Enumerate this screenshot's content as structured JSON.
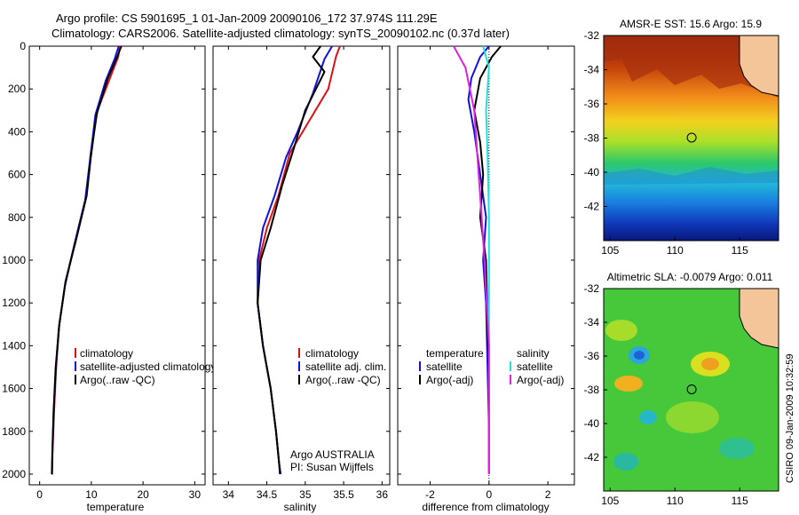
{
  "header": {
    "line1": "Argo profile: CS 5901695_1 01-Jan-2009 20090106_172 37.974S 111.29E",
    "line2": "Climatology: CARS2006. Satellite-adjusted climatology: synTS_20090102.nc (0.37d later)"
  },
  "side_credit": "CSIRO 09-Jan-2009 10:32:59",
  "colors": {
    "climatology": "#dd1111",
    "satellite": "#1111dd",
    "argo": "#000000",
    "cyan": "#22e0e0",
    "magenta": "#e020e0"
  },
  "chart_data": [
    {
      "type": "line",
      "xlabel": "temperature",
      "xlim": [
        -2,
        32
      ],
      "xticks": [
        0,
        10,
        20,
        30
      ],
      "ylim": [
        2050,
        0
      ],
      "yticks": [
        0,
        200,
        400,
        600,
        800,
        1000,
        1200,
        1400,
        1600,
        1800,
        2000
      ],
      "legend": {
        "placement": "center-right",
        "entries": [
          "climatology",
          "satellite-adjusted climatology",
          "Argo(..raw -QC)"
        ]
      },
      "series": [
        {
          "name": "climatology",
          "color": "#dd1111",
          "x": [
            15.5,
            15.2,
            13.6,
            11.2,
            9.9,
            9.0,
            7.0,
            5.0,
            3.8,
            3.2,
            2.8,
            2.5,
            2.4,
            2.35
          ],
          "y": [
            0,
            50,
            150,
            300,
            500,
            700,
            900,
            1100,
            1300,
            1500,
            1700,
            1900,
            2000,
            2000
          ]
        },
        {
          "name": "satellite-adjusted climatology",
          "color": "#1111dd",
          "x": [
            15.3,
            14.5,
            12.8,
            10.8,
            9.8,
            8.8,
            6.8,
            4.9,
            3.7,
            3.1,
            2.7,
            2.45,
            2.35
          ],
          "y": [
            0,
            60,
            160,
            320,
            520,
            720,
            920,
            1120,
            1320,
            1520,
            1720,
            1920,
            2000
          ]
        },
        {
          "name": "Argo(..raw -QC)",
          "color": "#000000",
          "x": [
            15.8,
            15.0,
            13.2,
            11.0,
            9.9,
            9.1,
            7.1,
            5.0,
            3.8,
            3.1,
            2.7,
            2.45,
            2.4
          ],
          "y": [
            0,
            50,
            150,
            320,
            520,
            700,
            900,
            1100,
            1300,
            1500,
            1700,
            1900,
            2000
          ]
        }
      ]
    },
    {
      "type": "line",
      "xlabel": "salinity",
      "xlim": [
        33.8,
        36.1
      ],
      "xticks": [
        34,
        34.5,
        35,
        35.5,
        36
      ],
      "ylim": [
        2050,
        0
      ],
      "yticks": [
        0,
        200,
        400,
        600,
        800,
        1000,
        1200,
        1400,
        1600,
        1800,
        2000
      ],
      "legend": {
        "placement": "center-right",
        "entries": [
          "climatology",
          "satellite adj. clim.",
          "Argo(..raw -QC)"
        ]
      },
      "annotation": [
        "Argo AUSTRALIA",
        "PI: Susan Wijffels"
      ],
      "series": [
        {
          "name": "climatology",
          "color": "#dd1111",
          "x": [
            35.45,
            35.4,
            35.3,
            35.0,
            34.8,
            34.65,
            34.5,
            34.4,
            34.38,
            34.45,
            34.55,
            34.62,
            34.66,
            34.68
          ],
          "y": [
            0,
            50,
            200,
            380,
            500,
            700,
            850,
            1000,
            1200,
            1400,
            1600,
            1800,
            1950,
            2000
          ]
        },
        {
          "name": "satellite adj. clim.",
          "color": "#1111dd",
          "x": [
            35.35,
            35.25,
            35.1,
            34.9,
            34.75,
            34.6,
            34.45,
            34.38,
            34.38,
            34.45,
            34.55,
            34.62,
            34.66,
            34.68
          ],
          "y": [
            0,
            60,
            220,
            400,
            520,
            700,
            850,
            1000,
            1200,
            1400,
            1600,
            1800,
            1950,
            2000
          ]
        },
        {
          "name": "Argo(..raw -QC)",
          "color": "#000000",
          "x": [
            35.2,
            35.1,
            35.25,
            35.0,
            34.85,
            34.7,
            34.55,
            34.42,
            34.38,
            34.45,
            34.55,
            34.62,
            34.66,
            34.67
          ],
          "y": [
            0,
            50,
            120,
            300,
            480,
            650,
            850,
            1000,
            1200,
            1400,
            1600,
            1800,
            1950,
            2000
          ]
        }
      ]
    },
    {
      "type": "line",
      "xlabel": "difference from climatology",
      "xlim": [
        -3.1,
        2.9
      ],
      "xticks": [
        -2,
        0,
        2
      ],
      "ylim": [
        2050,
        0
      ],
      "yticks": [
        0,
        200,
        400,
        600,
        800,
        1000,
        1200,
        1400,
        1600,
        1800,
        2000
      ],
      "legend": {
        "placement": "center",
        "columns": [
          {
            "title": "temperature",
            "entries": [
              "satellite",
              "Argo(-adj)"
            ]
          },
          {
            "title": "salinity",
            "entries": [
              "satellite",
              "Argo(-adj)"
            ]
          }
        ]
      },
      "series": [
        {
          "name": "temperature satellite",
          "color": "#1111dd",
          "x": [
            0.0,
            -0.3,
            -0.6,
            -0.7,
            -0.5,
            -0.3,
            -0.1,
            -0.2,
            -0.1,
            -0.05,
            0.0,
            0.0
          ],
          "y": [
            0,
            50,
            150,
            250,
            400,
            600,
            800,
            1000,
            1200,
            1500,
            1800,
            2000
          ]
        },
        {
          "name": "temperature Argo(-adj)",
          "color": "#000000",
          "x": [
            0.4,
            0.1,
            -0.3,
            -0.5,
            -0.3,
            -0.2,
            -0.3,
            -0.1,
            -0.05,
            0.0,
            0.0
          ],
          "y": [
            0,
            50,
            150,
            300,
            450,
            600,
            800,
            1000,
            1300,
            1600,
            2000
          ]
        },
        {
          "name": "salinity satellite",
          "color": "#22e0e0",
          "x": [
            -0.2,
            0.0,
            -0.1,
            -0.05,
            0.0,
            0.0,
            0.0,
            0.0
          ],
          "y": [
            0,
            100,
            300,
            500,
            800,
            1200,
            1600,
            2000
          ]
        },
        {
          "name": "salinity Argo(-adj)",
          "color": "#e020e0",
          "x": [
            -1.2,
            -0.8,
            -0.5,
            -0.4,
            -0.3,
            -0.15,
            0.0,
            0.0
          ],
          "y": [
            0,
            100,
            300,
            500,
            700,
            1000,
            1400,
            2000
          ]
        }
      ]
    },
    {
      "type": "heatmap",
      "title": "AMSR-E SST: 15.6 Argo: 15.9",
      "xlim": [
        104.5,
        118
      ],
      "xticks": [
        105,
        110,
        115
      ],
      "ylim": [
        -44,
        -32
      ],
      "yticks": [
        -32,
        -34,
        -36,
        -38,
        -40,
        -42
      ],
      "marker": {
        "x": 111.29,
        "y": -37.974
      }
    },
    {
      "type": "heatmap",
      "title": "Altimetric SLA: -0.0079 Argo: 0.011",
      "xlim": [
        104.5,
        118
      ],
      "xticks": [
        105,
        110,
        115
      ],
      "ylim": [
        -44,
        -32
      ],
      "yticks": [
        -32,
        -34,
        -36,
        -38,
        -40,
        -42
      ],
      "marker": {
        "x": 111.29,
        "y": -37.974
      }
    }
  ]
}
